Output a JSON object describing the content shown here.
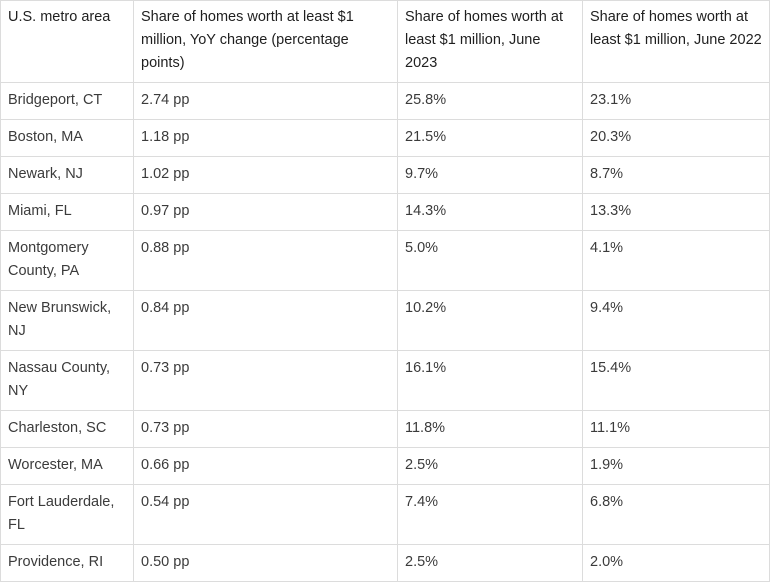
{
  "table": {
    "headers": [
      "U.S. metro area",
      "Share of homes worth at least $1 million, YoY change (percentage points)",
      "Share of homes worth at least $1 million, June 2023",
      "Share of homes worth at least $1 million, June 2022"
    ],
    "rows": [
      {
        "metro": "Bridgeport, CT",
        "yoy": "2.74 pp",
        "jun2023": "25.8%",
        "jun2022": "23.1%"
      },
      {
        "metro": "Boston, MA",
        "yoy": "1.18 pp",
        "jun2023": "21.5%",
        "jun2022": "20.3%"
      },
      {
        "metro": "Newark, NJ",
        "yoy": "1.02 pp",
        "jun2023": "9.7%",
        "jun2022": "8.7%"
      },
      {
        "metro": "Miami, FL",
        "yoy": "0.97 pp",
        "jun2023": "14.3%",
        "jun2022": "13.3%"
      },
      {
        "metro": "Montgomery County, PA",
        "yoy": "0.88 pp",
        "jun2023": "5.0%",
        "jun2022": "4.1%"
      },
      {
        "metro": "New Brunswick, NJ",
        "yoy": "0.84 pp",
        "jun2023": "10.2%",
        "jun2022": "9.4%"
      },
      {
        "metro": "Nassau County, NY",
        "yoy": "0.73 pp",
        "jun2023": "16.1%",
        "jun2022": "15.4%"
      },
      {
        "metro": "Charleston, SC",
        "yoy": "0.73 pp",
        "jun2023": "11.8%",
        "jun2022": "11.1%"
      },
      {
        "metro": "Worcester, MA",
        "yoy": "0.66 pp",
        "jun2023": "2.5%",
        "jun2022": "1.9%"
      },
      {
        "metro": "Fort Lauderdale, FL",
        "yoy": "0.54 pp",
        "jun2023": "7.4%",
        "jun2022": "6.8%"
      },
      {
        "metro": "Providence, RI",
        "yoy": "0.50 pp",
        "jun2023": "2.5%",
        "jun2022": "2.0%"
      }
    ]
  }
}
